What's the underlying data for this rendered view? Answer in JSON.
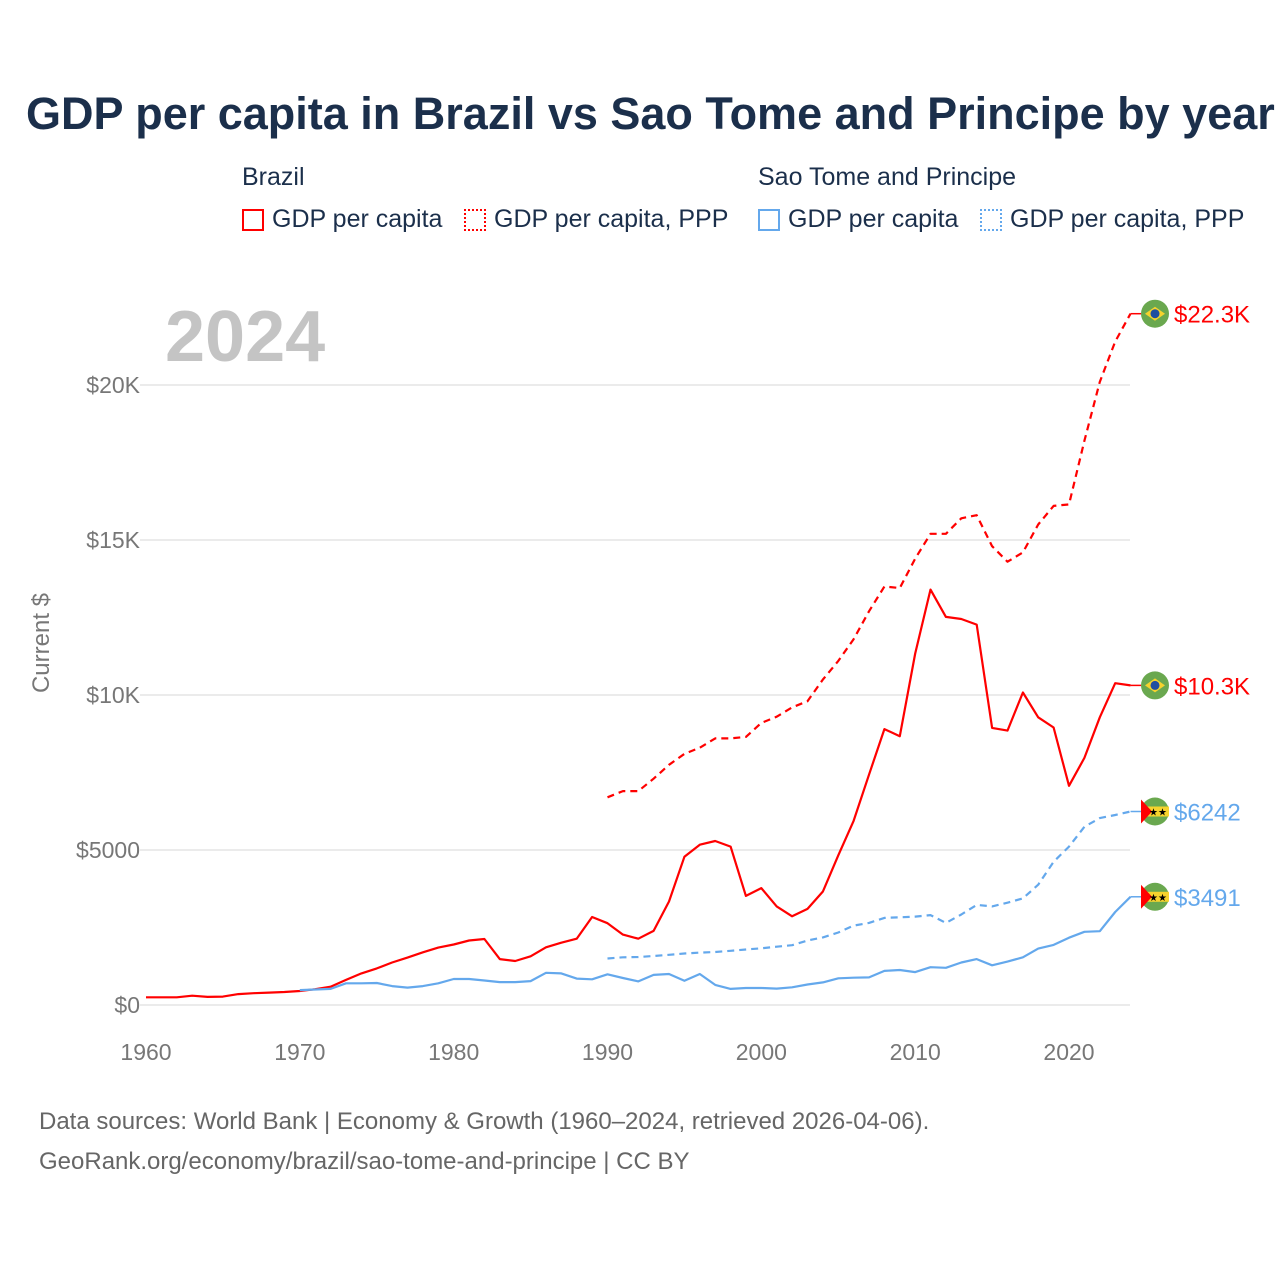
{
  "chart_data": {
    "type": "line",
    "title": "GDP per capita in Brazil vs Sao Tome and Principe by year",
    "year_label": "2024",
    "ylabel": "Current $",
    "xlabel": "",
    "xlim": [
      1960,
      2024
    ],
    "ylim": [
      0,
      22300
    ],
    "x_ticks": [
      1960,
      1970,
      1980,
      1990,
      2000,
      2010,
      2020
    ],
    "y_ticks": [
      {
        "v": 0,
        "label": "$0"
      },
      {
        "v": 5000,
        "label": "$5000"
      },
      {
        "v": 10000,
        "label": "$10K"
      },
      {
        "v": 15000,
        "label": "$15K"
      },
      {
        "v": 20000,
        "label": "$20K"
      }
    ],
    "grid": true,
    "legend": {
      "placement": "top",
      "groups": [
        {
          "name": "Brazil",
          "items": [
            "GDP per capita",
            "GDP per capita, PPP"
          ]
        },
        {
          "name": "Sao Tome and Principe",
          "items": [
            "GDP per capita",
            "GDP per capita, PPP"
          ]
        }
      ]
    },
    "series": [
      {
        "name": "Brazil GDP per capita",
        "country": "brazil",
        "color": "#ff0000",
        "dashed": false,
        "end_label": "$10.3K",
        "start": 1960,
        "values": [
          250,
          250,
          250,
          300,
          260,
          270,
          350,
          380,
          400,
          420,
          450,
          510,
          590,
          810,
          1020,
          1180,
          1370,
          1530,
          1700,
          1850,
          1950,
          2080,
          2130,
          1480,
          1420,
          1570,
          1860,
          2010,
          2140,
          2840,
          2640,
          2270,
          2140,
          2390,
          3340,
          4780,
          5170,
          5290,
          5110,
          3520,
          3770,
          3180,
          2860,
          3100,
          3660,
          4830,
          5940,
          7430,
          8900,
          8670,
          11340,
          13400,
          12520,
          12450,
          12270,
          8940,
          8850,
          10080,
          9280,
          8950,
          7070,
          7970,
          9280,
          10380,
          10310
        ]
      },
      {
        "name": "Brazil GDP per capita, PPP",
        "country": "brazil",
        "color": "#ff0000",
        "dashed": true,
        "end_label": "$22.3K",
        "start": 1990,
        "values": [
          6700,
          6900,
          6900,
          7300,
          7750,
          8100,
          8300,
          8600,
          8600,
          8650,
          9100,
          9300,
          9600,
          9800,
          10500,
          11100,
          11800,
          12700,
          13500,
          13450,
          14400,
          15200,
          15200,
          15700,
          15800,
          14800,
          14300,
          14600,
          15500,
          16100,
          16150,
          18200,
          20100,
          21400,
          22300
        ]
      },
      {
        "name": "Sao Tome and Principe GDP per capita",
        "country": "stp",
        "color": "#64a8ec",
        "dashed": false,
        "end_label": "$3491",
        "start": 1970,
        "values": [
          480,
          500,
          520,
          700,
          700,
          710,
          610,
          560,
          610,
          700,
          840,
          840,
          790,
          740,
          740,
          770,
          1040,
          1020,
          850,
          830,
          990,
          870,
          760,
          970,
          1000,
          780,
          1000,
          650,
          520,
          550,
          550,
          530,
          570,
          660,
          730,
          860,
          880,
          890,
          1100,
          1130,
          1060,
          1220,
          1200,
          1370,
          1480,
          1280,
          1400,
          1540,
          1820,
          1940,
          2170,
          2360,
          2380,
          3000,
          3491
        ]
      },
      {
        "name": "Sao Tome and Principe GDP per capita, PPP",
        "country": "stp",
        "color": "#64a8ec",
        "dashed": true,
        "end_label": "$6242",
        "start": 1990,
        "values": [
          1500,
          1540,
          1550,
          1580,
          1620,
          1660,
          1690,
          1710,
          1750,
          1790,
          1830,
          1880,
          1930,
          2080,
          2180,
          2340,
          2560,
          2650,
          2810,
          2830,
          2850,
          2900,
          2650,
          2920,
          3230,
          3180,
          3300,
          3440,
          3880,
          4620,
          5110,
          5750,
          6030,
          6130,
          6242
        ]
      }
    ]
  },
  "colors": {
    "brazil": "#ff0000",
    "stp": "#64a8ec",
    "title": "#1b2f4b"
  },
  "footer": {
    "line1": "Data sources: World Bank | Economy & Growth (1960–2024, retrieved 2026-04-06).",
    "line2": "GeoRank.org/economy/brazil/sao-tome-and-principe | CC BY"
  }
}
